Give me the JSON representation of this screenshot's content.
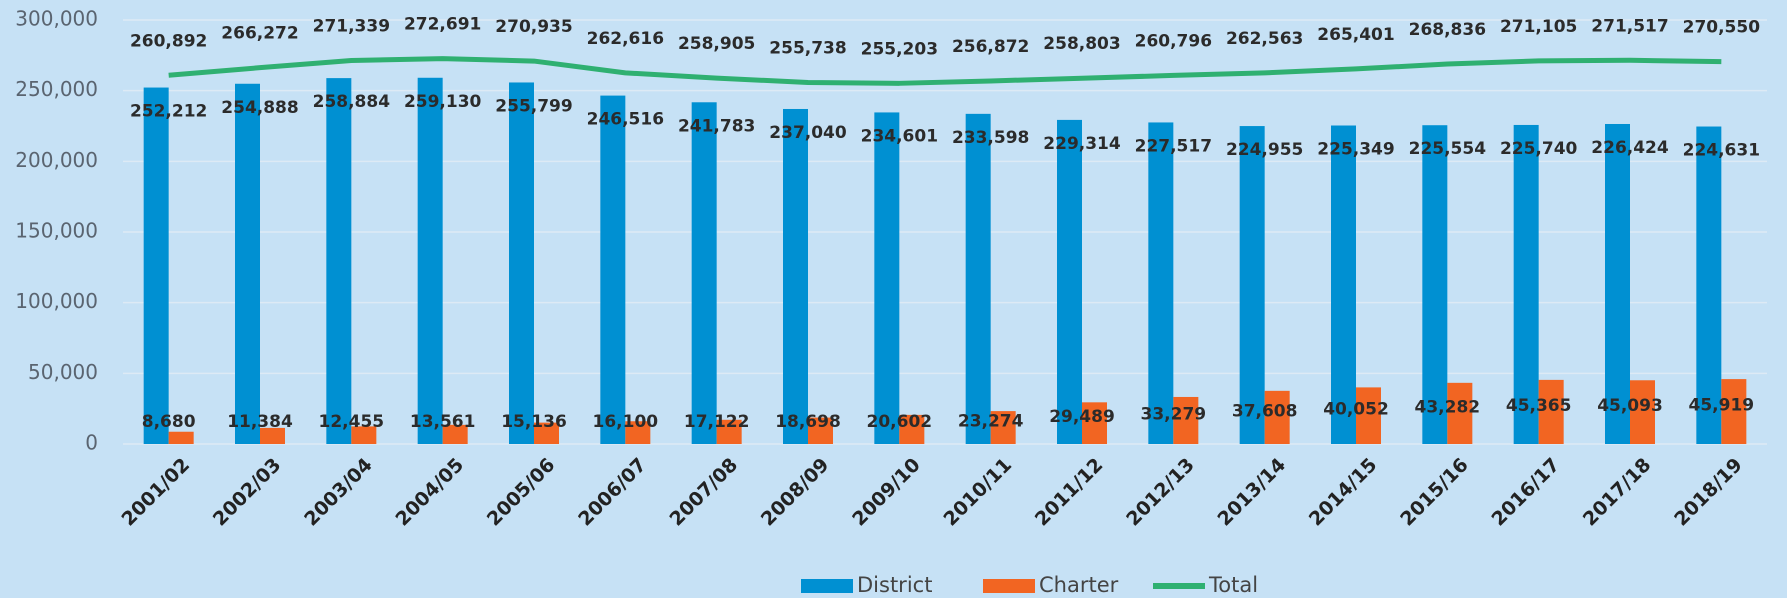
{
  "chart_data": {
    "type": "bar",
    "categories": [
      "2001/02",
      "2002/03",
      "2003/04",
      "2004/05",
      "2005/06",
      "2006/07",
      "2007/08",
      "2008/09",
      "2009/10",
      "2010/11",
      "2011/12",
      "2012/13",
      "2013/14",
      "2014/15",
      "2015/16",
      "2016/17",
      "2017/18",
      "2018/19"
    ],
    "series": [
      {
        "name": "District",
        "color": "#0090d2",
        "type": "bar",
        "values": [
          252212,
          254888,
          258884,
          259130,
          255799,
          246516,
          241783,
          237040,
          234601,
          233598,
          229314,
          227517,
          224955,
          225349,
          225554,
          225740,
          226424,
          224631
        ],
        "value_labels": [
          "252,212",
          "254,888",
          "258,884",
          "259,130",
          "255,799",
          "246,516",
          "241,783",
          "237,040",
          "234,601",
          "233,598",
          "229,314",
          "227,517",
          "224,955",
          "225,349",
          "225,554",
          "225,740",
          "226,424",
          "224,631"
        ]
      },
      {
        "name": "Charter",
        "color": "#f26522",
        "type": "bar",
        "values": [
          8680,
          11384,
          12455,
          13561,
          15136,
          16100,
          17122,
          18698,
          20602,
          23274,
          29489,
          33279,
          37608,
          40052,
          43282,
          45365,
          45093,
          45919
        ],
        "value_labels": [
          "8,680",
          "11,384",
          "12,455",
          "13,561",
          "15,136",
          "16,100",
          "17,122",
          "18,698",
          "20,602",
          "23,274",
          "29,489",
          "33,279",
          "37,608",
          "40,052",
          "43,282",
          "45,365",
          "45,093",
          "45,919"
        ]
      },
      {
        "name": "Total",
        "color": "#2fb071",
        "type": "line",
        "values": [
          260892,
          266272,
          271339,
          272691,
          270935,
          262616,
          258905,
          255738,
          255203,
          256872,
          258803,
          260796,
          262563,
          265401,
          268836,
          271105,
          271517,
          270550
        ],
        "value_labels": [
          "260,892",
          "266,272",
          "271,339",
          "272,691",
          "270,935",
          "262,616",
          "258,905",
          "255,738",
          "255,203",
          "256,872",
          "258,803",
          "260,796",
          "262,563",
          "265,401",
          "268,836",
          "271,105",
          "271,517",
          "270,550"
        ]
      }
    ],
    "ylim": [
      0,
      300000
    ],
    "yticks": [
      0,
      {
        "value": 50000,
        "label": "50,000"
      },
      {
        "value": 100000,
        "label": "100,000"
      },
      {
        "value": 150000,
        "label": "150,000"
      },
      {
        "value": 200000,
        "label": "200,000"
      },
      {
        "value": 250000,
        "label": "250,000"
      },
      {
        "value": 300000,
        "label": "300,000"
      }
    ],
    "grid": true,
    "legend": "bottom"
  }
}
